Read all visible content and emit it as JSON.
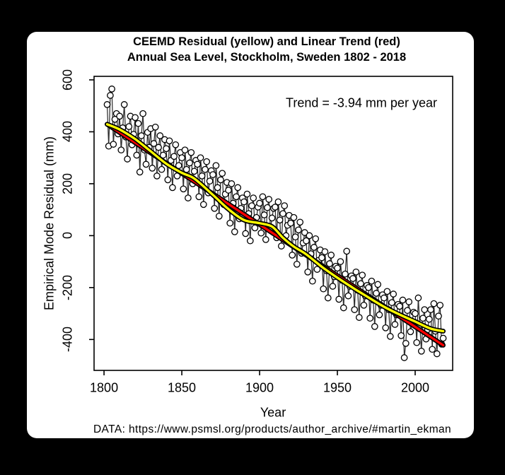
{
  "window": {
    "background": "#000000",
    "panel_background": "#ffffff"
  },
  "chart_data": {
    "type": "line",
    "title": "CEEMD Residual (yellow) and Linear Trend (red)",
    "subtitle": "Annual Sea Level, Stockholm, Sweden 1802 - 2018",
    "xlabel": "Year",
    "ylabel": "Empirical Mode Residual (mm)",
    "annotation": "Trend = -3.94 mm per year",
    "caption": "DATA: https://www.psmsl.org/products/author_archive/#martin_ekman",
    "x_ticks": [
      1800,
      1850,
      1900,
      1950,
      2000
    ],
    "y_ticks": [
      600,
      400,
      200,
      0,
      -200,
      -400
    ],
    "xlim": [
      1793.6,
      2024.1
    ],
    "ylim": [
      -519,
      613.6
    ],
    "grid": false,
    "legend": "none",
    "series": [
      {
        "name": "Annual sea level residual",
        "type": "scatter-line",
        "marker": "open-circle",
        "line_color": "#2e2e2e",
        "marker_fill": "#ffffff",
        "marker_stroke": "#000000",
        "x_start": 1802,
        "x_step": 1,
        "values": [
          505,
          345,
          540,
          565,
          352,
          448,
          470,
          392,
          460,
          330,
          415,
          505,
          380,
          295,
          420,
          460,
          350,
          390,
          455,
          310,
          432,
          245,
          385,
          470,
          330,
          275,
          398,
          340,
          412,
          260,
          355,
          418,
          230,
          340,
          385,
          255,
          310,
          370,
          335,
          215,
          365,
          290,
          185,
          305,
          350,
          230,
          270,
          320,
          300,
          180,
          330,
          255,
          145,
          280,
          320,
          200,
          248,
          290,
          275,
          150,
          300,
          230,
          120,
          255,
          285,
          165,
          210,
          250,
          235,
          105,
          270,
          185,
          75,
          215,
          240,
          120,
          160,
          205,
          175,
          48,
          200,
          125,
          15,
          150,
          185,
          65,
          105,
          145,
          130,
          8,
          160,
          85,
          -20,
          115,
          145,
          30,
          70,
          110,
          125,
          10,
          150,
          80,
          -15,
          108,
          140,
          25,
          68,
          105,
          110,
          -8,
          130,
          60,
          -40,
          85,
          115,
          0,
          40,
          78,
          48,
          -75,
          70,
          -5,
          -110,
          22,
          52,
          -68,
          -28,
          12,
          -20,
          -140,
          0,
          -70,
          -175,
          -45,
          -12,
          -130,
          -95,
          -55,
          -85,
          -205,
          -62,
          -135,
          -240,
          -108,
          -75,
          -195,
          -158,
          -118,
          -125,
          -245,
          -100,
          -172,
          -278,
          -148,
          -60,
          -232,
          -195,
          -155,
          -165,
          -285,
          -140,
          -210,
          -315,
          -185,
          -152,
          -268,
          -232,
          -192,
          -200,
          -318,
          -175,
          -248,
          -350,
          -222,
          -188,
          -305,
          -268,
          -228,
          -240,
          -355,
          -215,
          -285,
          -388,
          -258,
          -225,
          -342,
          -305,
          -265,
          -272,
          -385,
          -248,
          -470,
          -415,
          -288,
          -255,
          -370,
          -335,
          -295,
          -300,
          -412,
          -240,
          -345,
          -445,
          -318,
          -285,
          -398,
          -362,
          -322,
          -285,
          -438,
          -262,
          -368,
          -455,
          -310,
          -268,
          -418,
          -395
        ]
      },
      {
        "name": "Linear trend",
        "type": "line",
        "color": "#ff0000",
        "outline_color": "#000000",
        "trend_mm_per_year": -3.94,
        "x": [
          1802,
          2018
        ],
        "y": [
          429,
          -422
        ]
      },
      {
        "name": "CEEMD residual",
        "type": "smooth-line",
        "color": "#ffff00",
        "outline_color": "#000000",
        "x": [
          1802,
          1810,
          1820,
          1830,
          1840,
          1850,
          1858,
          1870,
          1880,
          1890,
          1900,
          1908,
          1915,
          1922,
          1930,
          1940,
          1950,
          1960,
          1970,
          1980,
          1990,
          2000,
          2010,
          2018
        ],
        "y": [
          429,
          409,
          372,
          325,
          277,
          242,
          220,
          157,
          102,
          60,
          48,
          35,
          -8,
          -42,
          -72,
          -120,
          -162,
          -201,
          -238,
          -274,
          -304,
          -331,
          -358,
          -368
        ]
      }
    ]
  }
}
